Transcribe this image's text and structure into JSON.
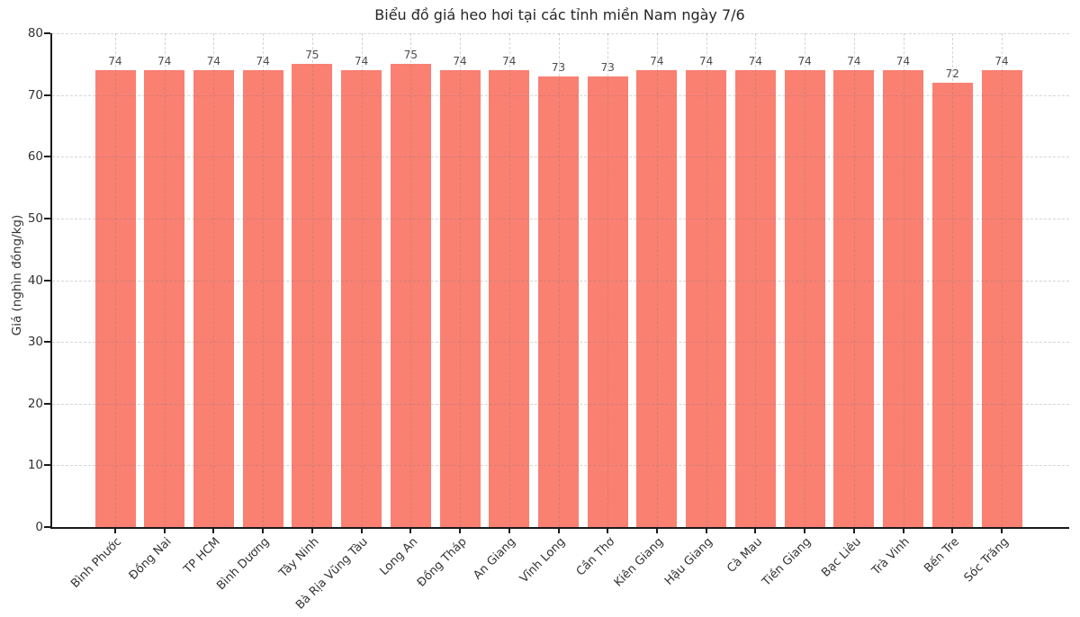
{
  "chart_data": {
    "type": "bar",
    "title": "Biểu đồ giá heo hơi tại các tỉnh miền Nam ngày 7/6",
    "xlabel": "",
    "ylabel": "Giá (nghìn đồng/kg)",
    "categories": [
      "Bình Phước",
      "Đồng Nai",
      "TP HCM",
      "Bình Dương",
      "Tây Ninh",
      "Bà Rịa Vũng Tàu",
      "Long An",
      "Đồng Tháp",
      "An Giang",
      "Vĩnh Long",
      "Cần Thơ",
      "Kiên Giang",
      "Hậu Giang",
      "Cà Mau",
      "Tiền Giang",
      "Bạc Liêu",
      "Trà Vinh",
      "Bến Tre",
      "Sóc Trăng"
    ],
    "values": [
      74,
      74,
      74,
      74,
      75,
      74,
      75,
      74,
      74,
      73,
      73,
      74,
      74,
      74,
      74,
      74,
      74,
      72,
      74
    ],
    "ylim": [
      0,
      80
    ],
    "yticks": [
      0,
      10,
      20,
      30,
      40,
      50,
      60,
      70,
      80
    ],
    "value_labels": true,
    "legend": "none",
    "grid": "dashed-both-axes",
    "colors": {
      "bar": "#FA8072",
      "axis_spine": "#1a1a1a",
      "grid_line": "#d9d9d9",
      "title_text": "#262626",
      "tick_text": "#333333",
      "value_label_text": "#4d4d4d",
      "background": "#ffffff"
    }
  }
}
